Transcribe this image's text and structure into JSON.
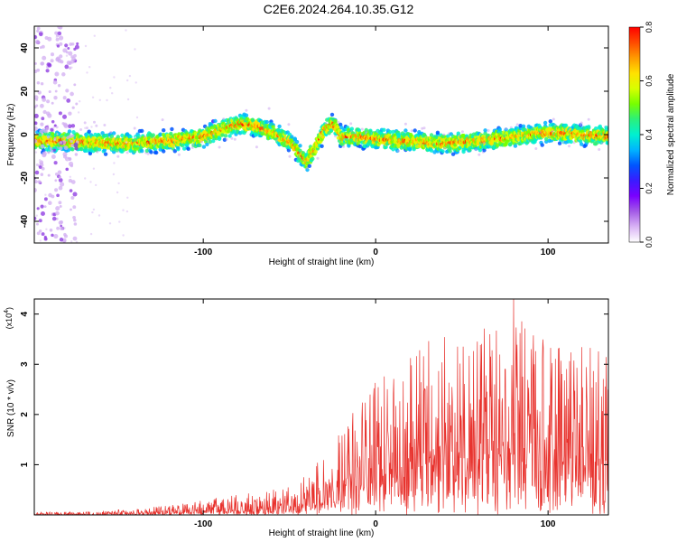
{
  "title": "C2E6.2024.264.10.35.G12",
  "chart_data": [
    {
      "type": "heatmap",
      "xlabel": "Height of straight line (km)",
      "ylabel": "Frequency (Hz)",
      "xlim": [
        -198,
        135
      ],
      "ylim": [
        -50,
        50
      ],
      "xticks": [
        -100,
        0,
        100
      ],
      "yticks": [
        -40,
        -20,
        0,
        20,
        40
      ],
      "grid": false,
      "colorbar": {
        "label": "Normalized spectral amplitude",
        "range": [
          0,
          0.8
        ],
        "ticks": [
          "0.0",
          "0.2",
          "0.4",
          "0.6",
          "0.8"
        ],
        "colors": [
          "#ffffff",
          "#d9b3f5",
          "#a35ae6",
          "#7a00ff",
          "#3a1bff",
          "#0055ff",
          "#00b4ff",
          "#00f0d0",
          "#2bf07a",
          "#77ff00",
          "#d8ff00",
          "#ffe100",
          "#ff9a00",
          "#ff4a00",
          "#ff0000"
        ]
      },
      "ridge": {
        "x": [
          -198,
          -180,
          -160,
          -140,
          -120,
          -100,
          -90,
          -80,
          -70,
          -60,
          -50,
          -45,
          -40,
          -35,
          -30,
          -25,
          -20,
          -10,
          0,
          20,
          40,
          60,
          80,
          100,
          120,
          135
        ],
        "y": [
          -3,
          -3,
          -4,
          -4,
          -3,
          -1,
          2,
          5,
          4,
          1,
          -3,
          -8,
          -12,
          -6,
          2,
          5,
          -1,
          -1,
          -2,
          -3,
          -4,
          -3,
          -1,
          1,
          0,
          -1
        ]
      }
    },
    {
      "type": "line",
      "xlabel": "Height of straight line (km)",
      "ylabel": "SNR (10 * v/v)",
      "yscale_label": "(x10",
      "yscale_exp": "4",
      "xlim": [
        -198,
        135
      ],
      "ylim": [
        0,
        4.3
      ],
      "xticks": [
        -100,
        0,
        100
      ],
      "yticks": [
        1,
        2,
        3,
        4
      ],
      "grid": false,
      "series": [
        {
          "color": "#e8332e",
          "envelope_x": [
            -198,
            -160,
            -140,
            -120,
            -100,
            -80,
            -60,
            -40,
            -30,
            -20,
            -10,
            0,
            10,
            20,
            30,
            40,
            50,
            60,
            70,
            80,
            90,
            100,
            110,
            120,
            130,
            135
          ],
          "envelope_y": [
            0.05,
            0.08,
            0.12,
            0.2,
            0.3,
            0.4,
            0.5,
            0.8,
            1.3,
            1.8,
            2.2,
            2.7,
            3.0,
            3.3,
            3.5,
            3.6,
            3.7,
            3.8,
            3.9,
            4.2,
            3.8,
            3.6,
            3.5,
            3.4,
            3.3,
            3.2
          ],
          "baseline_y": [
            0.0,
            0.0,
            0.02,
            0.03,
            0.05,
            0.07,
            0.1,
            0.15,
            0.25,
            0.4,
            0.6,
            0.8,
            0.9,
            1.0,
            1.0,
            1.1,
            1.1,
            1.1,
            1.2,
            1.2,
            1.1,
            1.0,
            1.0,
            0.9,
            0.9,
            0.8
          ],
          "peak": {
            "x": 80,
            "y": 4.3
          }
        }
      ]
    }
  ]
}
